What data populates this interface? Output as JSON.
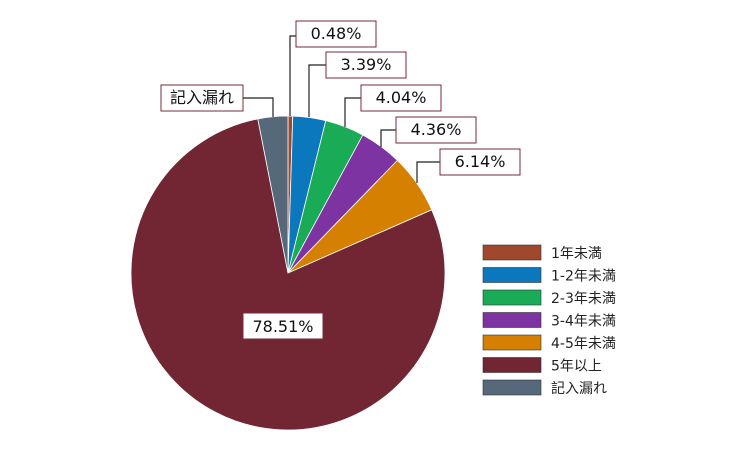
{
  "chart_data": {
    "type": "pie",
    "slices": [
      {
        "label": "1年未満",
        "value": 0.48,
        "display": "0.48%",
        "color": "#a0482e"
      },
      {
        "label": "1-2年未満",
        "value": 3.39,
        "display": "3.39%",
        "color": "#0b78bd"
      },
      {
        "label": "2-3年未満",
        "value": 4.04,
        "display": "4.04%",
        "color": "#1aab56"
      },
      {
        "label": "3-4年未満",
        "value": 4.36,
        "display": "4.36%",
        "color": "#7d33a1"
      },
      {
        "label": "4-5年未満",
        "value": 6.14,
        "display": "6.14%",
        "color": "#d58000"
      },
      {
        "label": "5年以上",
        "value": 78.51,
        "display": "78.51%",
        "color": "#722533"
      },
      {
        "label": "記入漏れ",
        "value": 3.08,
        "display": "記入漏れ",
        "color": "#55697a"
      }
    ],
    "legend_position": "right",
    "start_angle_deg": 0,
    "direction": "clockwise"
  }
}
